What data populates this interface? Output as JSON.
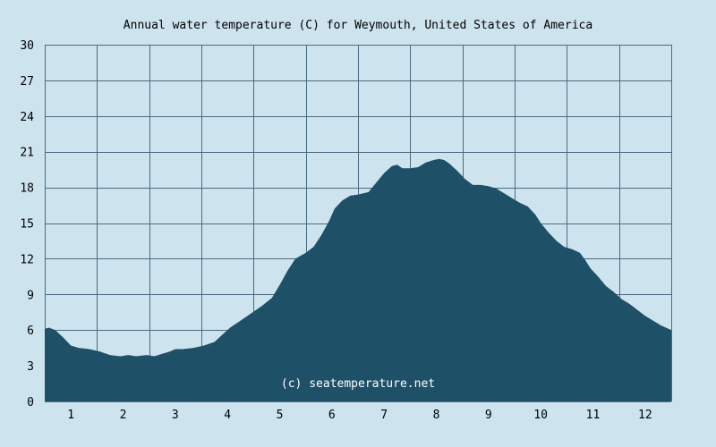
{
  "chart_data": {
    "type": "area",
    "title": "Annual water temperature (C) for Weymouth, United States of America",
    "xlabel": "",
    "ylabel": "",
    "xlim": [
      0.5,
      12.5
    ],
    "ylim": [
      0,
      30
    ],
    "yticks": [
      0,
      3,
      6,
      9,
      12,
      15,
      18,
      21,
      24,
      27,
      30
    ],
    "xticks": [
      1,
      2,
      3,
      4,
      5,
      6,
      7,
      8,
      9,
      10,
      11,
      12
    ],
    "grid": true,
    "watermark": "(c) seatemperature.net",
    "colors": {
      "background": "#cde3ee",
      "fill": "#1e5068",
      "grid": "#4a6c82"
    },
    "series": [
      {
        "x": [
          0.5,
          0.58,
          0.7,
          0.85,
          1.0,
          1.15,
          1.35,
          1.55,
          1.75,
          1.95,
          2.1,
          2.25,
          2.45,
          2.6,
          2.75,
          2.9,
          3.0,
          3.15,
          3.35,
          3.55,
          3.75,
          3.9,
          4.05,
          4.25,
          4.45,
          4.65,
          4.85,
          5.0,
          5.15,
          5.3,
          5.5,
          5.65,
          5.8,
          5.95,
          6.05,
          6.2,
          6.35,
          6.5,
          6.7,
          6.85,
          7.0,
          7.15,
          7.25,
          7.35,
          7.5,
          7.65,
          7.8,
          7.95,
          8.05,
          8.15,
          8.25,
          8.4,
          8.55,
          8.7,
          8.85,
          9.0,
          9.15,
          9.3,
          9.45,
          9.6,
          9.75,
          9.9,
          10.0,
          10.15,
          10.3,
          10.45,
          10.6,
          10.75,
          10.85,
          10.95,
          11.1,
          11.25,
          11.4,
          11.55,
          11.7,
          11.85,
          12.0,
          12.15,
          12.3,
          12.45,
          12.5
        ],
        "values": [
          6.1,
          6.2,
          6.0,
          5.4,
          4.7,
          4.5,
          4.4,
          4.2,
          3.9,
          3.8,
          3.9,
          3.8,
          3.9,
          3.8,
          4.0,
          4.2,
          4.4,
          4.4,
          4.5,
          4.7,
          5.0,
          5.6,
          6.2,
          6.8,
          7.4,
          8.0,
          8.7,
          9.8,
          11.0,
          12.0,
          12.5,
          13.0,
          14.0,
          15.2,
          16.2,
          16.9,
          17.3,
          17.4,
          17.6,
          18.4,
          19.2,
          19.8,
          19.9,
          19.6,
          19.6,
          19.7,
          20.1,
          20.3,
          20.4,
          20.3,
          20.0,
          19.4,
          18.7,
          18.2,
          18.2,
          18.1,
          17.9,
          17.5,
          17.1,
          16.7,
          16.4,
          15.7,
          15.0,
          14.2,
          13.5,
          13.0,
          12.8,
          12.5,
          11.9,
          11.2,
          10.5,
          9.7,
          9.2,
          8.6,
          8.2,
          7.7,
          7.2,
          6.8,
          6.4,
          6.1,
          6.0
        ]
      }
    ]
  }
}
